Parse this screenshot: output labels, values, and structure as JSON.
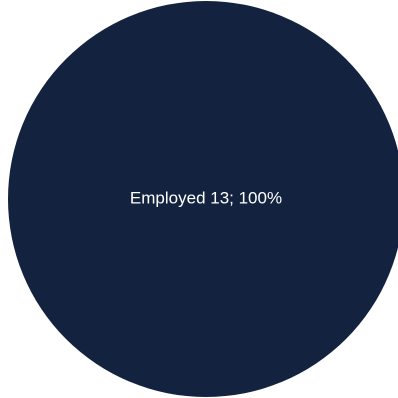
{
  "chart_data": {
    "type": "pie",
    "title": "",
    "slices": [
      {
        "label": "Employed",
        "value": 13,
        "percent": 100,
        "data_label": "Employed  13; 100%",
        "color": "#13233f"
      }
    ],
    "legend": "none"
  },
  "colors": {
    "background": "#ffffff",
    "label_text": "#ffffff"
  }
}
